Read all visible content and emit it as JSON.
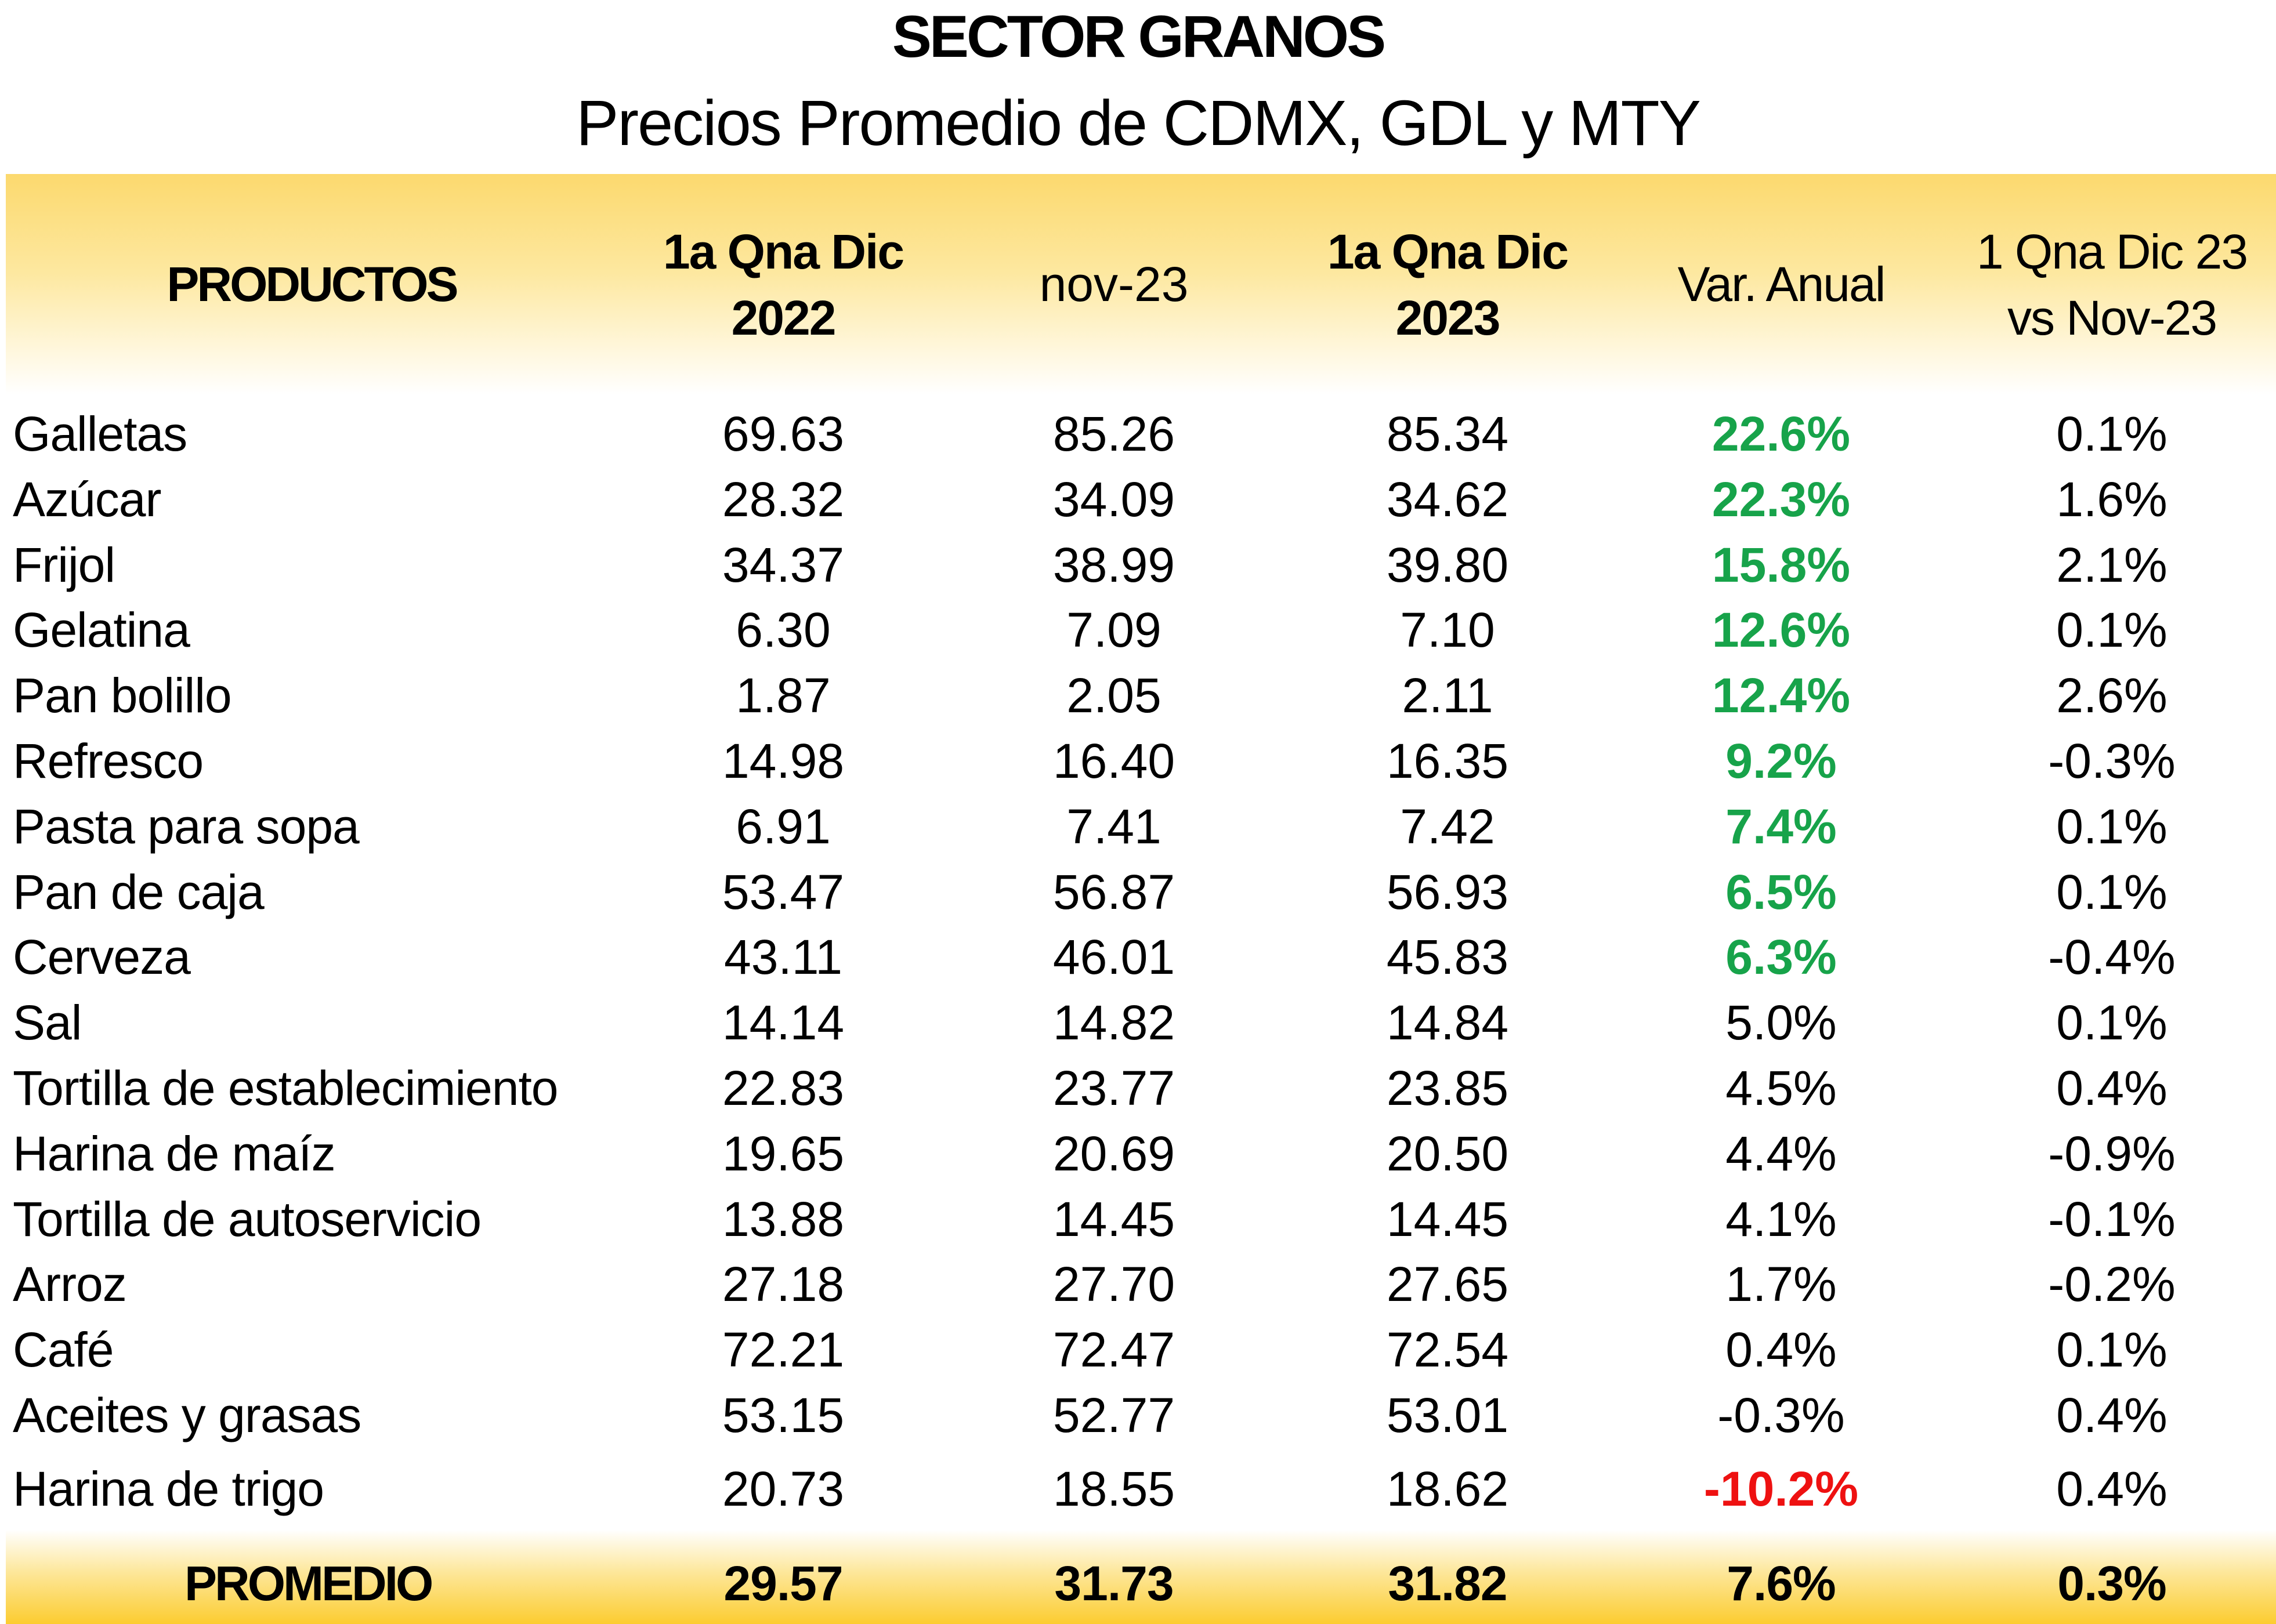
{
  "title": "SECTOR GRANOS",
  "subtitle": "Precios Promedio de CDMX, GDL y MTY",
  "headers": {
    "productos": "PRODUCTOS",
    "col1_line1": "1a Qna Dic",
    "col1_line2": "2022",
    "col2": "nov-23",
    "col3_line1": "1a Qna Dic",
    "col3_line2": "2023",
    "col4": "Var. Anual",
    "col5_line1": "1 Qna Dic 23",
    "col5_line2": "vs Nov-23"
  },
  "rows": [
    {
      "producto": "Galletas",
      "dic2022": "69.63",
      "nov23": "85.26",
      "dic2023": "85.34",
      "var_anual": "22.6%",
      "var_mensual": "0.1%",
      "highlight": "up"
    },
    {
      "producto": "Azúcar",
      "dic2022": "28.32",
      "nov23": "34.09",
      "dic2023": "34.62",
      "var_anual": "22.3%",
      "var_mensual": "1.6%",
      "highlight": "up"
    },
    {
      "producto": "Frijol",
      "dic2022": "34.37",
      "nov23": "38.99",
      "dic2023": "39.80",
      "var_anual": "15.8%",
      "var_mensual": "2.1%",
      "highlight": "up"
    },
    {
      "producto": "Gelatina",
      "dic2022": "6.30",
      "nov23": "7.09",
      "dic2023": "7.10",
      "var_anual": "12.6%",
      "var_mensual": "0.1%",
      "highlight": "up"
    },
    {
      "producto": "Pan bolillo",
      "dic2022": "1.87",
      "nov23": "2.05",
      "dic2023": "2.11",
      "var_anual": "12.4%",
      "var_mensual": "2.6%",
      "highlight": "up"
    },
    {
      "producto": "Refresco",
      "dic2022": "14.98",
      "nov23": "16.40",
      "dic2023": "16.35",
      "var_anual": "9.2%",
      "var_mensual": "-0.3%",
      "highlight": "up"
    },
    {
      "producto": "Pasta para sopa",
      "dic2022": "6.91",
      "nov23": "7.41",
      "dic2023": "7.42",
      "var_anual": "7.4%",
      "var_mensual": "0.1%",
      "highlight": "up"
    },
    {
      "producto": "Pan de caja",
      "dic2022": "53.47",
      "nov23": "56.87",
      "dic2023": "56.93",
      "var_anual": "6.5%",
      "var_mensual": "0.1%",
      "highlight": "up"
    },
    {
      "producto": "Cerveza",
      "dic2022": "43.11",
      "nov23": "46.01",
      "dic2023": "45.83",
      "var_anual": "6.3%",
      "var_mensual": "-0.4%",
      "highlight": "up"
    },
    {
      "producto": "Sal",
      "dic2022": "14.14",
      "nov23": "14.82",
      "dic2023": "14.84",
      "var_anual": "5.0%",
      "var_mensual": "0.1%",
      "highlight": "none"
    },
    {
      "producto": "Tortilla de establecimiento",
      "dic2022": "22.83",
      "nov23": "23.77",
      "dic2023": "23.85",
      "var_anual": "4.5%",
      "var_mensual": "0.4%",
      "highlight": "none"
    },
    {
      "producto": "Harina de maíz",
      "dic2022": "19.65",
      "nov23": "20.69",
      "dic2023": "20.50",
      "var_anual": "4.4%",
      "var_mensual": "-0.9%",
      "highlight": "none"
    },
    {
      "producto": "Tortilla de autoservicio",
      "dic2022": "13.88",
      "nov23": "14.45",
      "dic2023": "14.45",
      "var_anual": "4.1%",
      "var_mensual": "-0.1%",
      "highlight": "none"
    },
    {
      "producto": "Arroz",
      "dic2022": "27.18",
      "nov23": "27.70",
      "dic2023": "27.65",
      "var_anual": "1.7%",
      "var_mensual": "-0.2%",
      "highlight": "none"
    },
    {
      "producto": "Café",
      "dic2022": "72.21",
      "nov23": "72.47",
      "dic2023": "72.54",
      "var_anual": "0.4%",
      "var_mensual": "0.1%",
      "highlight": "none"
    },
    {
      "producto": "Aceites y grasas",
      "dic2022": "53.15",
      "nov23": "52.77",
      "dic2023": "53.01",
      "var_anual": "-0.3%",
      "var_mensual": "0.4%",
      "highlight": "none"
    },
    {
      "producto": "Harina de trigo",
      "dic2022": "20.73",
      "nov23": "18.55",
      "dic2023": "18.62",
      "var_anual": "-10.2%",
      "var_mensual": "0.4%",
      "highlight": "down"
    }
  ],
  "footer": {
    "label": "PROMEDIO",
    "dic2022": "29.57",
    "nov23": "31.73",
    "dic2023": "31.82",
    "var_anual": "7.6%",
    "var_mensual": "0.3%"
  },
  "colors": {
    "header_band": "#fcd96e",
    "footer_band": "#fccc30",
    "positive_highlight": "#17a34a",
    "negative_highlight": "#ee1111"
  }
}
